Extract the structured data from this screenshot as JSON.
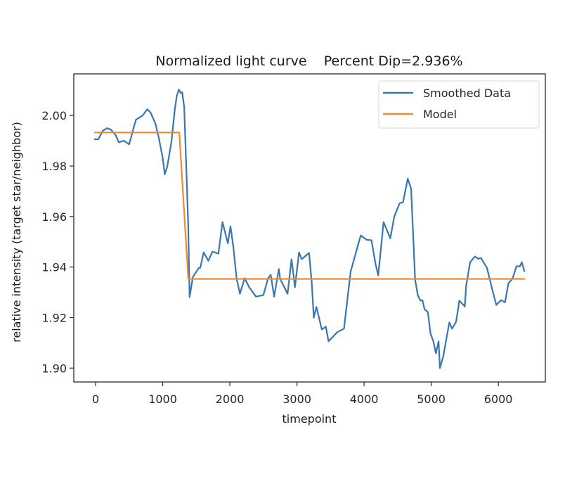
{
  "chart_data": {
    "type": "line",
    "title": "Normalized light curve    Percent Dip=2.936%",
    "xlabel": "timepoint",
    "ylabel": "relative intensity (target star/neighbor)",
    "xlim": [
      -325,
      6700
    ],
    "ylim": [
      1.8945,
      2.0165
    ],
    "xticks": [
      0,
      1000,
      2000,
      3000,
      4000,
      5000,
      6000
    ],
    "xtick_labels": [
      "0",
      "1000",
      "2000",
      "3000",
      "4000",
      "5000",
      "6000"
    ],
    "yticks": [
      1.9,
      1.92,
      1.94,
      1.96,
      1.98,
      2.0
    ],
    "ytick_labels": [
      "1.90",
      "1.92",
      "1.94",
      "1.96",
      "1.98",
      "2.00"
    ],
    "grid": false,
    "legend": {
      "position": "top-right",
      "entries": [
        "Smoothed Data",
        "Model"
      ]
    },
    "series": [
      {
        "name": "Smoothed Data",
        "color": "#3a76af",
        "x": [
          -20,
          40,
          105,
          170,
          230,
          300,
          345,
          420,
          500,
          580,
          590,
          600,
          700,
          770,
          820,
          890,
          940,
          1000,
          1030,
          1070,
          1130,
          1180,
          1210,
          1240,
          1270,
          1290,
          1320,
          1350,
          1380,
          1400,
          1450,
          1540,
          1560,
          1610,
          1680,
          1740,
          1830,
          1890,
          1970,
          2010,
          2050,
          2100,
          2150,
          2220,
          2290,
          2390,
          2500,
          2570,
          2610,
          2660,
          2730,
          2750,
          2860,
          2920,
          2970,
          3030,
          3070,
          3180,
          3220,
          3250,
          3290,
          3370,
          3430,
          3470,
          3600,
          3700,
          3800,
          3950,
          4040,
          4110,
          4170,
          4210,
          4250,
          4290,
          4390,
          4450,
          4530,
          4580,
          4650,
          4700,
          4760,
          4800,
          4840,
          4870,
          4900,
          4950,
          4990,
          5030,
          5070,
          5110,
          5130,
          5180,
          5270,
          5310,
          5370,
          5420,
          5500,
          5520,
          5580,
          5650,
          5700,
          5740,
          5830,
          5920,
          5970,
          6040,
          6100,
          6150,
          6210,
          6270,
          6320,
          6350,
          6390
        ],
        "y": [
          1.9906,
          1.9906,
          1.9939,
          1.995,
          1.9944,
          1.9922,
          1.9894,
          1.99,
          1.9886,
          1.9964,
          1.9972,
          1.9983,
          2.0,
          2.0025,
          2.0011,
          1.9969,
          1.9914,
          1.9831,
          1.9767,
          1.98,
          1.9897,
          2.0025,
          2.0078,
          2.0103,
          2.0089,
          2.0092,
          2.0033,
          1.98,
          1.9561,
          1.9281,
          1.9361,
          1.9397,
          1.9397,
          1.9458,
          1.9425,
          1.9461,
          1.9453,
          1.9578,
          1.9494,
          1.9561,
          1.9483,
          1.9356,
          1.9294,
          1.9356,
          1.9319,
          1.9283,
          1.9289,
          1.9356,
          1.9369,
          1.9283,
          1.9392,
          1.9353,
          1.9294,
          1.9431,
          1.932,
          1.9458,
          1.9431,
          1.9456,
          1.9339,
          1.92,
          1.9242,
          1.9153,
          1.9164,
          1.9106,
          1.9142,
          1.9156,
          1.9383,
          1.9525,
          1.9508,
          1.9506,
          1.9414,
          1.9367,
          1.9472,
          1.9578,
          1.9514,
          1.96,
          1.9653,
          1.9656,
          1.975,
          1.9711,
          1.935,
          1.9289,
          1.9267,
          1.9269,
          1.9233,
          1.9222,
          1.9136,
          1.9108,
          1.9058,
          1.9106,
          1.9,
          1.9047,
          1.9181,
          1.9156,
          1.9183,
          1.9267,
          1.9244,
          1.9325,
          1.9419,
          1.9442,
          1.9433,
          1.9436,
          1.9397,
          1.93,
          1.925,
          1.9269,
          1.9261,
          1.9336,
          1.9353,
          1.9403,
          1.9403,
          1.9419,
          1.9381
        ]
      },
      {
        "name": "Model",
        "color": "#f28a2e",
        "x": [
          -20,
          1246,
          1380,
          6400
        ],
        "y": [
          1.9933,
          1.9933,
          1.9353,
          1.9353
        ]
      }
    ]
  }
}
